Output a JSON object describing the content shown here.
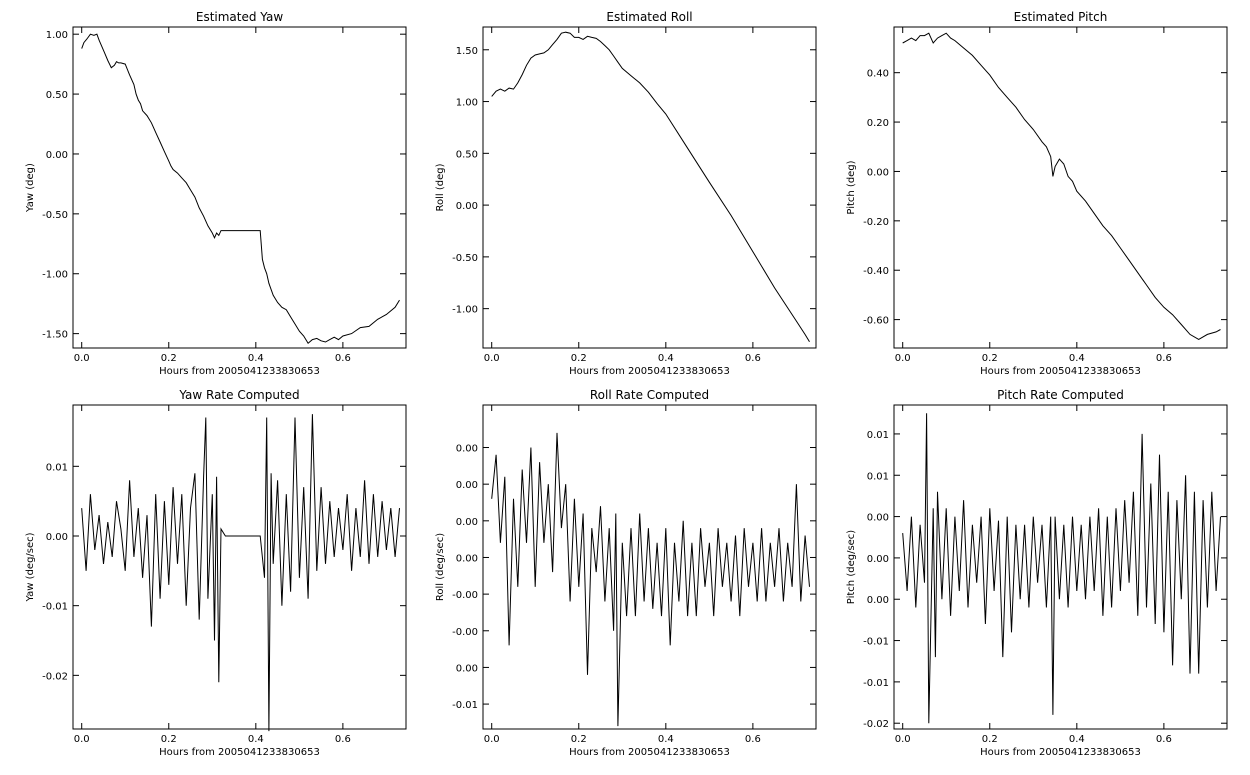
{
  "chart_data": [
    {
      "type": "line",
      "title": "Estimated Yaw",
      "xlabel": "Hours from 2005041233830653",
      "ylabel": "Yaw (deg)",
      "xlim": [
        -0.02,
        0.745
      ],
      "ylim": [
        -1.62,
        1.06
      ],
      "xticks": [
        0.0,
        0.2,
        0.4,
        0.6
      ],
      "xtick_labels": [
        "0.0",
        "0.2",
        "0.4",
        "0.6"
      ],
      "yticks": [
        -1.5,
        -1.0,
        -0.5,
        0.0,
        0.5,
        1.0
      ],
      "ytick_labels": [
        "-1.50",
        "-1.00",
        "-0.50",
        "0.00",
        "0.50",
        "1.00"
      ],
      "grid": false,
      "series": [
        {
          "x": [
            0.0,
            0.005,
            0.012,
            0.02,
            0.028,
            0.035,
            0.04,
            0.046,
            0.052,
            0.06,
            0.068,
            0.075,
            0.08,
            0.085,
            0.09,
            0.1,
            0.11,
            0.12,
            0.125,
            0.13,
            0.135,
            0.14,
            0.15,
            0.16,
            0.17,
            0.18,
            0.19,
            0.2,
            0.205,
            0.21,
            0.22,
            0.23,
            0.24,
            0.25,
            0.26,
            0.27,
            0.28,
            0.29,
            0.3,
            0.305,
            0.31,
            0.315,
            0.32,
            0.33,
            0.4,
            0.41,
            0.415,
            0.42,
            0.425,
            0.43,
            0.44,
            0.45,
            0.46,
            0.47,
            0.48,
            0.49,
            0.5,
            0.51,
            0.52,
            0.53,
            0.54,
            0.55,
            0.56,
            0.57,
            0.58,
            0.59,
            0.6,
            0.62,
            0.64,
            0.66,
            0.68,
            0.7,
            0.72,
            0.73
          ],
          "y": [
            0.88,
            0.93,
            0.96,
            1.0,
            0.99,
            1.0,
            0.95,
            0.9,
            0.85,
            0.78,
            0.72,
            0.74,
            0.77,
            0.76,
            0.76,
            0.75,
            0.66,
            0.58,
            0.5,
            0.45,
            0.42,
            0.36,
            0.32,
            0.26,
            0.18,
            0.1,
            0.02,
            -0.06,
            -0.1,
            -0.13,
            -0.16,
            -0.2,
            -0.24,
            -0.3,
            -0.36,
            -0.45,
            -0.52,
            -0.6,
            -0.66,
            -0.7,
            -0.66,
            -0.68,
            -0.64,
            -0.64,
            -0.64,
            -0.64,
            -0.88,
            -0.95,
            -1.0,
            -1.08,
            -1.18,
            -1.24,
            -1.28,
            -1.3,
            -1.36,
            -1.42,
            -1.48,
            -1.52,
            -1.58,
            -1.55,
            -1.54,
            -1.56,
            -1.57,
            -1.55,
            -1.53,
            -1.55,
            -1.52,
            -1.5,
            -1.45,
            -1.44,
            -1.38,
            -1.34,
            -1.28,
            -1.22
          ]
        }
      ]
    },
    {
      "type": "line",
      "title": "Estimated Roll",
      "xlabel": "Hours from 2005041233830653",
      "ylabel": "Roll (deg)",
      "xlim": [
        -0.02,
        0.745
      ],
      "ylim": [
        -1.38,
        1.72
      ],
      "xticks": [
        0.0,
        0.2,
        0.4,
        0.6
      ],
      "xtick_labels": [
        "0.0",
        "0.2",
        "0.4",
        "0.6"
      ],
      "yticks": [
        -1.0,
        -0.5,
        0.0,
        0.5,
        1.0,
        1.5
      ],
      "ytick_labels": [
        "-1.00",
        "-0.50",
        "0.00",
        "0.50",
        "1.00",
        "1.50"
      ],
      "grid": false,
      "series": [
        {
          "x": [
            0.0,
            0.01,
            0.02,
            0.03,
            0.04,
            0.05,
            0.06,
            0.07,
            0.08,
            0.09,
            0.1,
            0.11,
            0.12,
            0.13,
            0.14,
            0.15,
            0.16,
            0.17,
            0.18,
            0.19,
            0.2,
            0.21,
            0.22,
            0.23,
            0.24,
            0.25,
            0.26,
            0.27,
            0.28,
            0.29,
            0.3,
            0.32,
            0.34,
            0.36,
            0.38,
            0.4,
            0.45,
            0.5,
            0.55,
            0.6,
            0.65,
            0.7,
            0.72,
            0.73
          ],
          "y": [
            1.05,
            1.1,
            1.12,
            1.1,
            1.13,
            1.12,
            1.18,
            1.26,
            1.35,
            1.42,
            1.45,
            1.46,
            1.47,
            1.5,
            1.55,
            1.6,
            1.66,
            1.67,
            1.66,
            1.62,
            1.62,
            1.6,
            1.63,
            1.62,
            1.61,
            1.58,
            1.54,
            1.5,
            1.44,
            1.38,
            1.32,
            1.25,
            1.18,
            1.09,
            0.98,
            0.88,
            0.55,
            0.22,
            -0.1,
            -0.45,
            -0.8,
            -1.12,
            -1.25,
            -1.32
          ]
        }
      ]
    },
    {
      "type": "line",
      "title": "Estimated Pitch",
      "xlabel": "Hours from 2005041233830653",
      "ylabel": "Pitch (deg)",
      "xlim": [
        -0.02,
        0.745
      ],
      "ylim": [
        -0.715,
        0.585
      ],
      "xticks": [
        0.0,
        0.2,
        0.4,
        0.6
      ],
      "xtick_labels": [
        "0.0",
        "0.2",
        "0.4",
        "0.6"
      ],
      "yticks": [
        -0.6,
        -0.4,
        -0.2,
        0.0,
        0.2,
        0.4
      ],
      "ytick_labels": [
        "-0.60",
        "-0.40",
        "-0.20",
        "0.00",
        "0.20",
        "0.40"
      ],
      "grid": false,
      "series": [
        {
          "x": [
            0.0,
            0.01,
            0.02,
            0.03,
            0.04,
            0.05,
            0.06,
            0.07,
            0.08,
            0.09,
            0.1,
            0.11,
            0.12,
            0.14,
            0.16,
            0.18,
            0.2,
            0.22,
            0.24,
            0.26,
            0.28,
            0.3,
            0.32,
            0.33,
            0.34,
            0.345,
            0.35,
            0.36,
            0.37,
            0.38,
            0.39,
            0.4,
            0.42,
            0.44,
            0.46,
            0.48,
            0.5,
            0.52,
            0.54,
            0.56,
            0.58,
            0.6,
            0.62,
            0.64,
            0.66,
            0.68,
            0.7,
            0.72,
            0.73
          ],
          "y": [
            0.52,
            0.53,
            0.54,
            0.53,
            0.55,
            0.55,
            0.56,
            0.52,
            0.54,
            0.55,
            0.56,
            0.54,
            0.53,
            0.5,
            0.47,
            0.43,
            0.39,
            0.34,
            0.3,
            0.26,
            0.21,
            0.17,
            0.12,
            0.1,
            0.06,
            -0.02,
            0.02,
            0.05,
            0.03,
            -0.02,
            -0.04,
            -0.08,
            -0.12,
            -0.17,
            -0.22,
            -0.26,
            -0.31,
            -0.36,
            -0.41,
            -0.46,
            -0.51,
            -0.55,
            -0.58,
            -0.62,
            -0.66,
            -0.68,
            -0.66,
            -0.65,
            -0.64
          ]
        }
      ]
    },
    {
      "type": "line",
      "title": "Yaw Rate Computed",
      "xlabel": "Hours from 2005041233830653",
      "ylabel": "Yaw (deg/sec)",
      "xlim": [
        -0.02,
        0.745
      ],
      "ylim": [
        -0.0277,
        0.0188
      ],
      "xticks": [
        0.0,
        0.2,
        0.4,
        0.6
      ],
      "xtick_labels": [
        "0.0",
        "0.2",
        "0.4",
        "0.6"
      ],
      "yticks": [
        -0.02,
        -0.01,
        0.0,
        0.01
      ],
      "ytick_labels": [
        "-0.02",
        "-0.01",
        "0.00",
        "0.01"
      ],
      "grid": false,
      "series": [
        {
          "x": [
            0.0,
            0.01,
            0.02,
            0.03,
            0.04,
            0.05,
            0.06,
            0.07,
            0.08,
            0.09,
            0.1,
            0.11,
            0.12,
            0.13,
            0.14,
            0.15,
            0.16,
            0.17,
            0.18,
            0.19,
            0.2,
            0.21,
            0.22,
            0.23,
            0.24,
            0.25,
            0.26,
            0.27,
            0.28,
            0.285,
            0.29,
            0.3,
            0.305,
            0.31,
            0.315,
            0.32,
            0.33,
            0.4,
            0.41,
            0.42,
            0.425,
            0.43,
            0.435,
            0.44,
            0.45,
            0.46,
            0.47,
            0.48,
            0.49,
            0.5,
            0.51,
            0.52,
            0.53,
            0.54,
            0.55,
            0.56,
            0.57,
            0.58,
            0.59,
            0.6,
            0.61,
            0.62,
            0.63,
            0.64,
            0.65,
            0.66,
            0.67,
            0.68,
            0.69,
            0.7,
            0.71,
            0.72,
            0.73
          ],
          "y": [
            0.004,
            -0.005,
            0.006,
            -0.002,
            0.003,
            -0.004,
            0.002,
            -0.003,
            0.005,
            0.001,
            -0.005,
            0.008,
            -0.003,
            0.004,
            -0.006,
            0.003,
            -0.013,
            0.006,
            -0.009,
            0.005,
            -0.007,
            0.007,
            -0.004,
            0.006,
            -0.01,
            0.004,
            0.009,
            -0.012,
            0.0085,
            0.017,
            -0.009,
            0.006,
            -0.015,
            0.0085,
            -0.021,
            0.001,
            0.0,
            0.0,
            0.0,
            -0.006,
            0.017,
            -0.028,
            0.009,
            -0.004,
            0.008,
            -0.01,
            0.006,
            -0.008,
            0.017,
            -0.006,
            0.007,
            -0.009,
            0.0175,
            -0.005,
            0.007,
            -0.004,
            0.005,
            -0.003,
            0.004,
            -0.002,
            0.006,
            -0.005,
            0.004,
            -0.003,
            0.008,
            -0.004,
            0.006,
            -0.003,
            0.005,
            -0.002,
            0.004,
            -0.003,
            0.004
          ]
        }
      ]
    },
    {
      "type": "line",
      "title": "Roll Rate Computed",
      "xlabel": "Hours from 2005041233830653",
      "ylabel": "Roll (deg/sec)",
      "xlim": [
        -0.02,
        0.745
      ],
      "ylim": [
        -0.0117,
        0.0104
      ],
      "xticks": [
        0.0,
        0.2,
        0.4,
        0.6
      ],
      "xtick_labels": [
        "0.0",
        "0.2",
        "0.4",
        "0.6"
      ],
      "yticks": [
        -0.01,
        -0.0075,
        -0.005,
        -0.0025,
        0.0,
        0.0025,
        0.005,
        0.0075
      ],
      "ytick_labels": [
        "-0.01",
        "0.00",
        "-0.00",
        "-0.00",
        "0.00",
        "0.00",
        "0.00",
        "0.00"
      ],
      "grid": false,
      "series": [
        {
          "x": [
            0.0,
            0.01,
            0.02,
            0.03,
            0.04,
            0.05,
            0.06,
            0.07,
            0.08,
            0.09,
            0.1,
            0.11,
            0.12,
            0.13,
            0.14,
            0.15,
            0.16,
            0.17,
            0.18,
            0.19,
            0.2,
            0.21,
            0.22,
            0.23,
            0.24,
            0.25,
            0.26,
            0.27,
            0.28,
            0.285,
            0.29,
            0.3,
            0.31,
            0.32,
            0.33,
            0.34,
            0.35,
            0.36,
            0.37,
            0.38,
            0.39,
            0.4,
            0.41,
            0.42,
            0.43,
            0.44,
            0.45,
            0.46,
            0.47,
            0.48,
            0.49,
            0.5,
            0.51,
            0.52,
            0.53,
            0.54,
            0.55,
            0.56,
            0.57,
            0.58,
            0.59,
            0.6,
            0.61,
            0.62,
            0.63,
            0.64,
            0.65,
            0.66,
            0.67,
            0.68,
            0.69,
            0.7,
            0.71,
            0.72,
            0.73
          ],
          "y": [
            0.004,
            0.007,
            0.001,
            0.0055,
            -0.006,
            0.004,
            -0.002,
            0.006,
            0.001,
            0.0075,
            -0.002,
            0.0065,
            0.001,
            0.005,
            -0.001,
            0.0085,
            0.002,
            0.005,
            -0.003,
            0.004,
            -0.002,
            0.003,
            -0.008,
            0.002,
            -0.001,
            0.0035,
            -0.003,
            0.002,
            -0.005,
            0.003,
            -0.0115,
            0.001,
            -0.004,
            0.002,
            -0.004,
            0.003,
            -0.003,
            0.002,
            -0.0035,
            0.001,
            -0.004,
            0.002,
            -0.006,
            0.001,
            -0.003,
            0.0025,
            -0.004,
            0.001,
            -0.004,
            0.002,
            -0.002,
            0.001,
            -0.004,
            0.002,
            -0.002,
            0.001,
            -0.003,
            0.0015,
            -0.004,
            0.002,
            -0.002,
            0.001,
            -0.003,
            0.002,
            -0.003,
            0.001,
            -0.002,
            0.002,
            -0.003,
            0.001,
            -0.002,
            0.005,
            -0.003,
            0.0015,
            -0.002
          ]
        }
      ]
    },
    {
      "type": "line",
      "title": "Pitch Rate Computed",
      "xlabel": "Hours from 2005041233830653",
      "ylabel": "Pitch (deg/sec)",
      "xlim": [
        -0.02,
        0.745
      ],
      "ylim": [
        -0.0207,
        0.0185
      ],
      "xticks": [
        0.0,
        0.2,
        0.4,
        0.6
      ],
      "xtick_labels": [
        "0.0",
        "0.2",
        "0.4",
        "0.6"
      ],
      "yticks": [
        -0.02,
        -0.015,
        -0.01,
        -0.005,
        0.0,
        0.005,
        0.01,
        0.015
      ],
      "ytick_labels": [
        "-0.02",
        "-0.01",
        "-0.01",
        "0.00",
        "0.00",
        "0.00",
        "0.01",
        "0.01"
      ],
      "grid": false,
      "series": [
        {
          "x": [
            0.0,
            0.01,
            0.02,
            0.03,
            0.04,
            0.05,
            0.055,
            0.06,
            0.07,
            0.075,
            0.08,
            0.09,
            0.1,
            0.11,
            0.12,
            0.13,
            0.14,
            0.15,
            0.16,
            0.17,
            0.18,
            0.19,
            0.2,
            0.21,
            0.22,
            0.23,
            0.24,
            0.25,
            0.26,
            0.27,
            0.28,
            0.29,
            0.3,
            0.31,
            0.32,
            0.33,
            0.34,
            0.345,
            0.35,
            0.36,
            0.37,
            0.38,
            0.39,
            0.4,
            0.41,
            0.42,
            0.43,
            0.44,
            0.45,
            0.46,
            0.47,
            0.48,
            0.49,
            0.5,
            0.51,
            0.52,
            0.53,
            0.54,
            0.55,
            0.56,
            0.57,
            0.58,
            0.59,
            0.6,
            0.61,
            0.62,
            0.63,
            0.64,
            0.65,
            0.66,
            0.67,
            0.68,
            0.69,
            0.7,
            0.71,
            0.72,
            0.73
          ],
          "y": [
            0.003,
            -0.004,
            0.005,
            -0.006,
            0.004,
            -0.003,
            0.0175,
            -0.02,
            0.006,
            -0.012,
            0.008,
            -0.005,
            0.006,
            -0.007,
            0.005,
            -0.004,
            0.007,
            -0.006,
            0.004,
            -0.003,
            0.005,
            -0.008,
            0.006,
            -0.004,
            0.0045,
            -0.012,
            0.005,
            -0.009,
            0.004,
            -0.005,
            0.004,
            -0.006,
            0.005,
            -0.003,
            0.004,
            -0.006,
            0.005,
            -0.019,
            0.005,
            -0.005,
            0.004,
            -0.006,
            0.005,
            -0.004,
            0.004,
            -0.005,
            0.005,
            -0.004,
            0.006,
            -0.007,
            0.005,
            -0.006,
            0.006,
            -0.004,
            0.007,
            -0.003,
            0.008,
            -0.007,
            0.015,
            -0.006,
            0.009,
            -0.008,
            0.0125,
            -0.009,
            0.008,
            -0.013,
            0.007,
            -0.005,
            0.01,
            -0.014,
            0.008,
            -0.014,
            0.007,
            -0.006,
            0.008,
            -0.004,
            0.005
          ]
        }
      ]
    }
  ]
}
